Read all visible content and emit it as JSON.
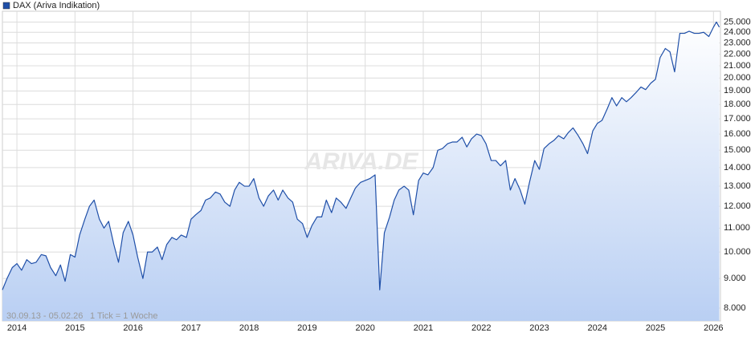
{
  "chart_data": {
    "type": "line",
    "legend_label_note": null,
    "series": [
      {
        "name": "DAX (Ariva Indikation)",
        "color": "#1f4fa8",
        "values": [
          8600,
          9000,
          9400,
          9550,
          9300,
          9700,
          9550,
          9600,
          9900,
          9850,
          9400,
          9100,
          9500,
          8900,
          9900,
          9800,
          10700,
          11400,
          12000,
          12300,
          11400,
          11000,
          11300,
          10300,
          9600,
          10800,
          11300,
          10700,
          9800,
          9000,
          10000,
          10000,
          10200,
          9700,
          10300,
          10600,
          10500,
          10700,
          10600,
          11400,
          11600,
          11800,
          12300,
          12400,
          12700,
          12600,
          12200,
          12000,
          12800,
          13200,
          13000,
          13000,
          13400,
          12400,
          12000,
          12500,
          12800,
          12300,
          12800,
          12400,
          12200,
          11400,
          11200,
          10600,
          11100,
          11500,
          11500,
          12300,
          11700,
          12400,
          12200,
          11900,
          12400,
          12900,
          13200,
          13300,
          13400,
          13600,
          8600,
          10800,
          11500,
          12300,
          12800,
          13000,
          12800,
          11600,
          13300,
          13700,
          13600,
          14000,
          15000,
          15100,
          15400,
          15500,
          15500,
          15800,
          15200,
          15700,
          16000,
          15900,
          15400,
          14400,
          14400,
          14100,
          14400,
          12800,
          13400,
          12800,
          12100,
          13200,
          14400,
          13900,
          15100,
          15400,
          15600,
          15900,
          15700,
          16100,
          16400,
          15900,
          15400,
          14800,
          16200,
          16700,
          16900,
          17700,
          18500,
          17900,
          18500,
          18200,
          18500,
          18900,
          19300,
          19100,
          19600,
          19900,
          21700,
          22500,
          22200,
          20500,
          23900,
          23900,
          24100,
          23900,
          23900,
          24000,
          23600,
          24500,
          25000,
          24500
        ]
      }
    ],
    "x": [
      2013.75,
      2013.83,
      2013.92,
      2014.0,
      2014.08,
      2014.17,
      2014.25,
      2014.33,
      2014.42,
      2014.5,
      2014.58,
      2014.67,
      2014.75,
      2014.83,
      2014.92,
      2015.0,
      2015.08,
      2015.17,
      2015.25,
      2015.33,
      2015.42,
      2015.5,
      2015.58,
      2015.67,
      2015.75,
      2015.83,
      2015.92,
      2016.0,
      2016.08,
      2016.17,
      2016.25,
      2016.33,
      2016.42,
      2016.5,
      2016.58,
      2016.67,
      2016.75,
      2016.83,
      2016.92,
      2017.0,
      2017.08,
      2017.17,
      2017.25,
      2017.33,
      2017.42,
      2017.5,
      2017.58,
      2017.67,
      2017.75,
      2017.83,
      2017.92,
      2018.0,
      2018.08,
      2018.17,
      2018.25,
      2018.33,
      2018.42,
      2018.5,
      2018.58,
      2018.67,
      2018.75,
      2018.83,
      2018.92,
      2019.0,
      2019.08,
      2019.17,
      2019.25,
      2019.33,
      2019.42,
      2019.5,
      2019.58,
      2019.67,
      2019.75,
      2019.83,
      2019.92,
      2020.0,
      2020.08,
      2020.17,
      2020.25,
      2020.33,
      2020.42,
      2020.5,
      2020.58,
      2020.67,
      2020.75,
      2020.83,
      2020.92,
      2021.0,
      2021.08,
      2021.17,
      2021.25,
      2021.33,
      2021.42,
      2021.5,
      2021.58,
      2021.67,
      2021.75,
      2021.83,
      2021.92,
      2022.0,
      2022.08,
      2022.17,
      2022.25,
      2022.33,
      2022.42,
      2022.5,
      2022.58,
      2022.67,
      2022.75,
      2022.83,
      2022.92,
      2023.0,
      2023.08,
      2023.17,
      2023.25,
      2023.33,
      2023.42,
      2023.5,
      2023.58,
      2023.67,
      2023.75,
      2023.83,
      2023.92,
      2024.0,
      2024.08,
      2024.17,
      2024.25,
      2024.33,
      2024.42,
      2024.5,
      2024.58,
      2024.67,
      2024.75,
      2024.83,
      2024.92,
      2025.0,
      2025.08,
      2025.17,
      2025.25,
      2025.33,
      2025.42,
      2025.5,
      2025.58,
      2025.67,
      2025.75,
      2025.83,
      2025.92,
      2026.0,
      2026.05,
      2026.1
    ],
    "xlim": [
      2013.75,
      2026.12
    ],
    "xticks": [
      2014,
      2015,
      2016,
      2017,
      2018,
      2019,
      2020,
      2021,
      2022,
      2023,
      2024,
      2025,
      2026
    ],
    "ylim": [
      7600,
      26100
    ],
    "log_y": true,
    "yticks": [
      {
        "value": 8000,
        "label": "8.000"
      },
      {
        "value": 9000,
        "label": "9.000"
      },
      {
        "value": 10000,
        "label": "10.000"
      },
      {
        "value": 11000,
        "label": "11.000"
      },
      {
        "value": 12000,
        "label": "12.000"
      },
      {
        "value": 13000,
        "label": "13.000"
      },
      {
        "value": 14000,
        "label": "14.000"
      },
      {
        "value": 15000,
        "label": "15.000"
      },
      {
        "value": 16000,
        "label": "16.000"
      },
      {
        "value": 17000,
        "label": "17.000"
      },
      {
        "value": 18000,
        "label": "18.000"
      },
      {
        "value": 19000,
        "label": "19.000"
      },
      {
        "value": 20000,
        "label": "20.000"
      },
      {
        "value": 21000,
        "label": "21.000"
      },
      {
        "value": 22000,
        "label": "22.000"
      },
      {
        "value": 23000,
        "label": "23.000"
      },
      {
        "value": 24000,
        "label": "24.000"
      },
      {
        "value": 25000,
        "label": "25.000"
      }
    ],
    "grid": true,
    "period_note": "30.09.13 - 05.02.26",
    "tick_note": "1 Tick = 1 Woche",
    "watermark": "ARIVA.DE"
  }
}
